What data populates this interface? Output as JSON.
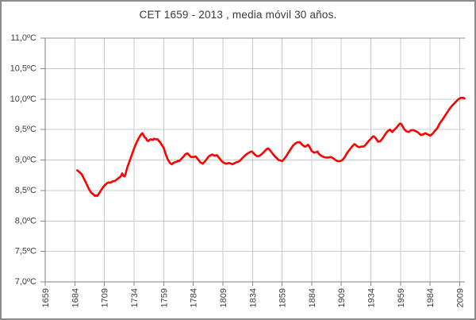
{
  "window": {
    "border_color": "#8c8c8c",
    "background": "#ffffff"
  },
  "chart_style": {
    "line_color": "#ff0000",
    "gridline_color": "#cbcbcb",
    "axis_color": "#7f7f7f",
    "top_border_color": "#909090",
    "tick_color": "#8a8a8a",
    "label_color": "#3f3f3f",
    "title_color": "#3a3a3a"
  },
  "chart_data": {
    "type": "line",
    "title": "CET 1659 - 2013 , media móvil 30 años.",
    "xlabel": "",
    "ylabel": "",
    "grid": true,
    "legend": false,
    "ylim": [
      7.0,
      11.0
    ],
    "y_ticks": [
      11.0,
      10.5,
      10.0,
      9.5,
      9.0,
      8.5,
      8.0,
      7.5,
      7.0
    ],
    "y_tick_labels": [
      "11,0ºC",
      "10,5ºC",
      "10,0ºC",
      "9,5ºC",
      "9,0ºC",
      "8,5ºC",
      "8,0ºC",
      "7,5ºC",
      "7,0ºC"
    ],
    "x_ticks": [
      1659,
      1684,
      1709,
      1734,
      1759,
      1784,
      1809,
      1834,
      1859,
      1884,
      1909,
      1934,
      1959,
      1984,
      2009
    ],
    "x_tick_labels": [
      "1659",
      "1684",
      "1709",
      "1734",
      "1759",
      "1784",
      "1809",
      "1834",
      "1859",
      "1884",
      "1909",
      "1934",
      "1959",
      "1984",
      "2009"
    ],
    "series_name": "CET media móvil 30 años",
    "points": [
      [
        1686,
        8.83
      ],
      [
        1688,
        8.8
      ],
      [
        1690,
        8.76
      ],
      [
        1692,
        8.68
      ],
      [
        1694,
        8.6
      ],
      [
        1696,
        8.52
      ],
      [
        1698,
        8.46
      ],
      [
        1700,
        8.43
      ],
      [
        1701,
        8.41
      ],
      [
        1702,
        8.42
      ],
      [
        1703,
        8.41
      ],
      [
        1704,
        8.44
      ],
      [
        1706,
        8.5
      ],
      [
        1708,
        8.56
      ],
      [
        1710,
        8.6
      ],
      [
        1712,
        8.63
      ],
      [
        1714,
        8.63
      ],
      [
        1716,
        8.65
      ],
      [
        1718,
        8.66
      ],
      [
        1720,
        8.69
      ],
      [
        1722,
        8.72
      ],
      [
        1723,
        8.74
      ],
      [
        1724,
        8.78
      ],
      [
        1725,
        8.74
      ],
      [
        1726,
        8.73
      ],
      [
        1727,
        8.78
      ],
      [
        1728,
        8.86
      ],
      [
        1730,
        8.97
      ],
      [
        1732,
        9.08
      ],
      [
        1734,
        9.19
      ],
      [
        1736,
        9.28
      ],
      [
        1738,
        9.36
      ],
      [
        1740,
        9.42
      ],
      [
        1741,
        9.44
      ],
      [
        1742,
        9.41
      ],
      [
        1743,
        9.37
      ],
      [
        1744,
        9.36
      ],
      [
        1745,
        9.32
      ],
      [
        1746,
        9.31
      ],
      [
        1747,
        9.33
      ],
      [
        1748,
        9.34
      ],
      [
        1750,
        9.33
      ],
      [
        1751,
        9.35
      ],
      [
        1752,
        9.34
      ],
      [
        1754,
        9.34
      ],
      [
        1755,
        9.31
      ],
      [
        1756,
        9.29
      ],
      [
        1758,
        9.23
      ],
      [
        1759,
        9.2
      ],
      [
        1760,
        9.14
      ],
      [
        1761,
        9.08
      ],
      [
        1762,
        9.03
      ],
      [
        1763,
        8.99
      ],
      [
        1764,
        8.96
      ],
      [
        1765,
        8.94
      ],
      [
        1766,
        8.93
      ],
      [
        1767,
        8.95
      ],
      [
        1768,
        8.96
      ],
      [
        1770,
        8.97
      ],
      [
        1771,
        8.99
      ],
      [
        1772,
        8.98
      ],
      [
        1774,
        9.02
      ],
      [
        1776,
        9.06
      ],
      [
        1777,
        9.09
      ],
      [
        1778,
        9.1
      ],
      [
        1779,
        9.11
      ],
      [
        1780,
        9.09
      ],
      [
        1782,
        9.05
      ],
      [
        1784,
        9.05
      ],
      [
        1786,
        9.06
      ],
      [
        1788,
        9.01
      ],
      [
        1790,
        8.96
      ],
      [
        1792,
        8.94
      ],
      [
        1794,
        8.98
      ],
      [
        1796,
        9.03
      ],
      [
        1797,
        9.06
      ],
      [
        1798,
        9.07
      ],
      [
        1800,
        9.09
      ],
      [
        1802,
        9.07
      ],
      [
        1804,
        9.08
      ],
      [
        1806,
        9.03
      ],
      [
        1808,
        8.98
      ],
      [
        1810,
        8.95
      ],
      [
        1812,
        8.94
      ],
      [
        1814,
        8.95
      ],
      [
        1816,
        8.94
      ],
      [
        1817,
        8.93
      ],
      [
        1818,
        8.94
      ],
      [
        1820,
        8.96
      ],
      [
        1822,
        8.97
      ],
      [
        1824,
        9.0
      ],
      [
        1826,
        9.04
      ],
      [
        1828,
        9.08
      ],
      [
        1830,
        9.11
      ],
      [
        1832,
        9.13
      ],
      [
        1833,
        9.14
      ],
      [
        1834,
        9.13
      ],
      [
        1836,
        9.09
      ],
      [
        1838,
        9.06
      ],
      [
        1840,
        9.07
      ],
      [
        1842,
        9.1
      ],
      [
        1844,
        9.14
      ],
      [
        1846,
        9.18
      ],
      [
        1847,
        9.19
      ],
      [
        1848,
        9.18
      ],
      [
        1850,
        9.13
      ],
      [
        1852,
        9.08
      ],
      [
        1854,
        9.04
      ],
      [
        1856,
        9.0
      ],
      [
        1858,
        8.99
      ],
      [
        1859,
        8.98
      ],
      [
        1860,
        9.0
      ],
      [
        1862,
        9.05
      ],
      [
        1864,
        9.11
      ],
      [
        1866,
        9.17
      ],
      [
        1868,
        9.23
      ],
      [
        1870,
        9.27
      ],
      [
        1872,
        9.29
      ],
      [
        1874,
        9.29
      ],
      [
        1876,
        9.25
      ],
      [
        1878,
        9.22
      ],
      [
        1879,
        9.22
      ],
      [
        1880,
        9.24
      ],
      [
        1881,
        9.25
      ],
      [
        1882,
        9.22
      ],
      [
        1884,
        9.15
      ],
      [
        1886,
        9.12
      ],
      [
        1888,
        9.13
      ],
      [
        1889,
        9.14
      ],
      [
        1890,
        9.1
      ],
      [
        1892,
        9.07
      ],
      [
        1894,
        9.05
      ],
      [
        1896,
        9.04
      ],
      [
        1898,
        9.04
      ],
      [
        1900,
        9.05
      ],
      [
        1902,
        9.03
      ],
      [
        1904,
        9.0
      ],
      [
        1906,
        8.98
      ],
      [
        1908,
        8.98
      ],
      [
        1910,
        9.0
      ],
      [
        1912,
        9.05
      ],
      [
        1914,
        9.12
      ],
      [
        1916,
        9.17
      ],
      [
        1918,
        9.22
      ],
      [
        1920,
        9.26
      ],
      [
        1921,
        9.25
      ],
      [
        1922,
        9.23
      ],
      [
        1924,
        9.21
      ],
      [
        1926,
        9.22
      ],
      [
        1928,
        9.22
      ],
      [
        1930,
        9.26
      ],
      [
        1932,
        9.31
      ],
      [
        1934,
        9.35
      ],
      [
        1936,
        9.39
      ],
      [
        1937,
        9.38
      ],
      [
        1938,
        9.36
      ],
      [
        1940,
        9.3
      ],
      [
        1942,
        9.31
      ],
      [
        1944,
        9.36
      ],
      [
        1946,
        9.42
      ],
      [
        1948,
        9.47
      ],
      [
        1950,
        9.5
      ],
      [
        1951,
        9.48
      ],
      [
        1952,
        9.46
      ],
      [
        1954,
        9.5
      ],
      [
        1956,
        9.54
      ],
      [
        1958,
        9.59
      ],
      [
        1959,
        9.6
      ],
      [
        1960,
        9.58
      ],
      [
        1962,
        9.51
      ],
      [
        1964,
        9.47
      ],
      [
        1966,
        9.46
      ],
      [
        1968,
        9.49
      ],
      [
        1970,
        9.49
      ],
      [
        1972,
        9.47
      ],
      [
        1974,
        9.45
      ],
      [
        1976,
        9.41
      ],
      [
        1978,
        9.42
      ],
      [
        1980,
        9.44
      ],
      [
        1982,
        9.42
      ],
      [
        1984,
        9.4
      ],
      [
        1986,
        9.43
      ],
      [
        1988,
        9.48
      ],
      [
        1990,
        9.52
      ],
      [
        1992,
        9.6
      ],
      [
        1994,
        9.65
      ],
      [
        1996,
        9.71
      ],
      [
        1998,
        9.77
      ],
      [
        2000,
        9.83
      ],
      [
        2002,
        9.88
      ],
      [
        2004,
        9.92
      ],
      [
        2006,
        9.96
      ],
      [
        2008,
        10.0
      ],
      [
        2010,
        10.02
      ],
      [
        2012,
        10.02
      ],
      [
        2013,
        10.01
      ]
    ]
  }
}
